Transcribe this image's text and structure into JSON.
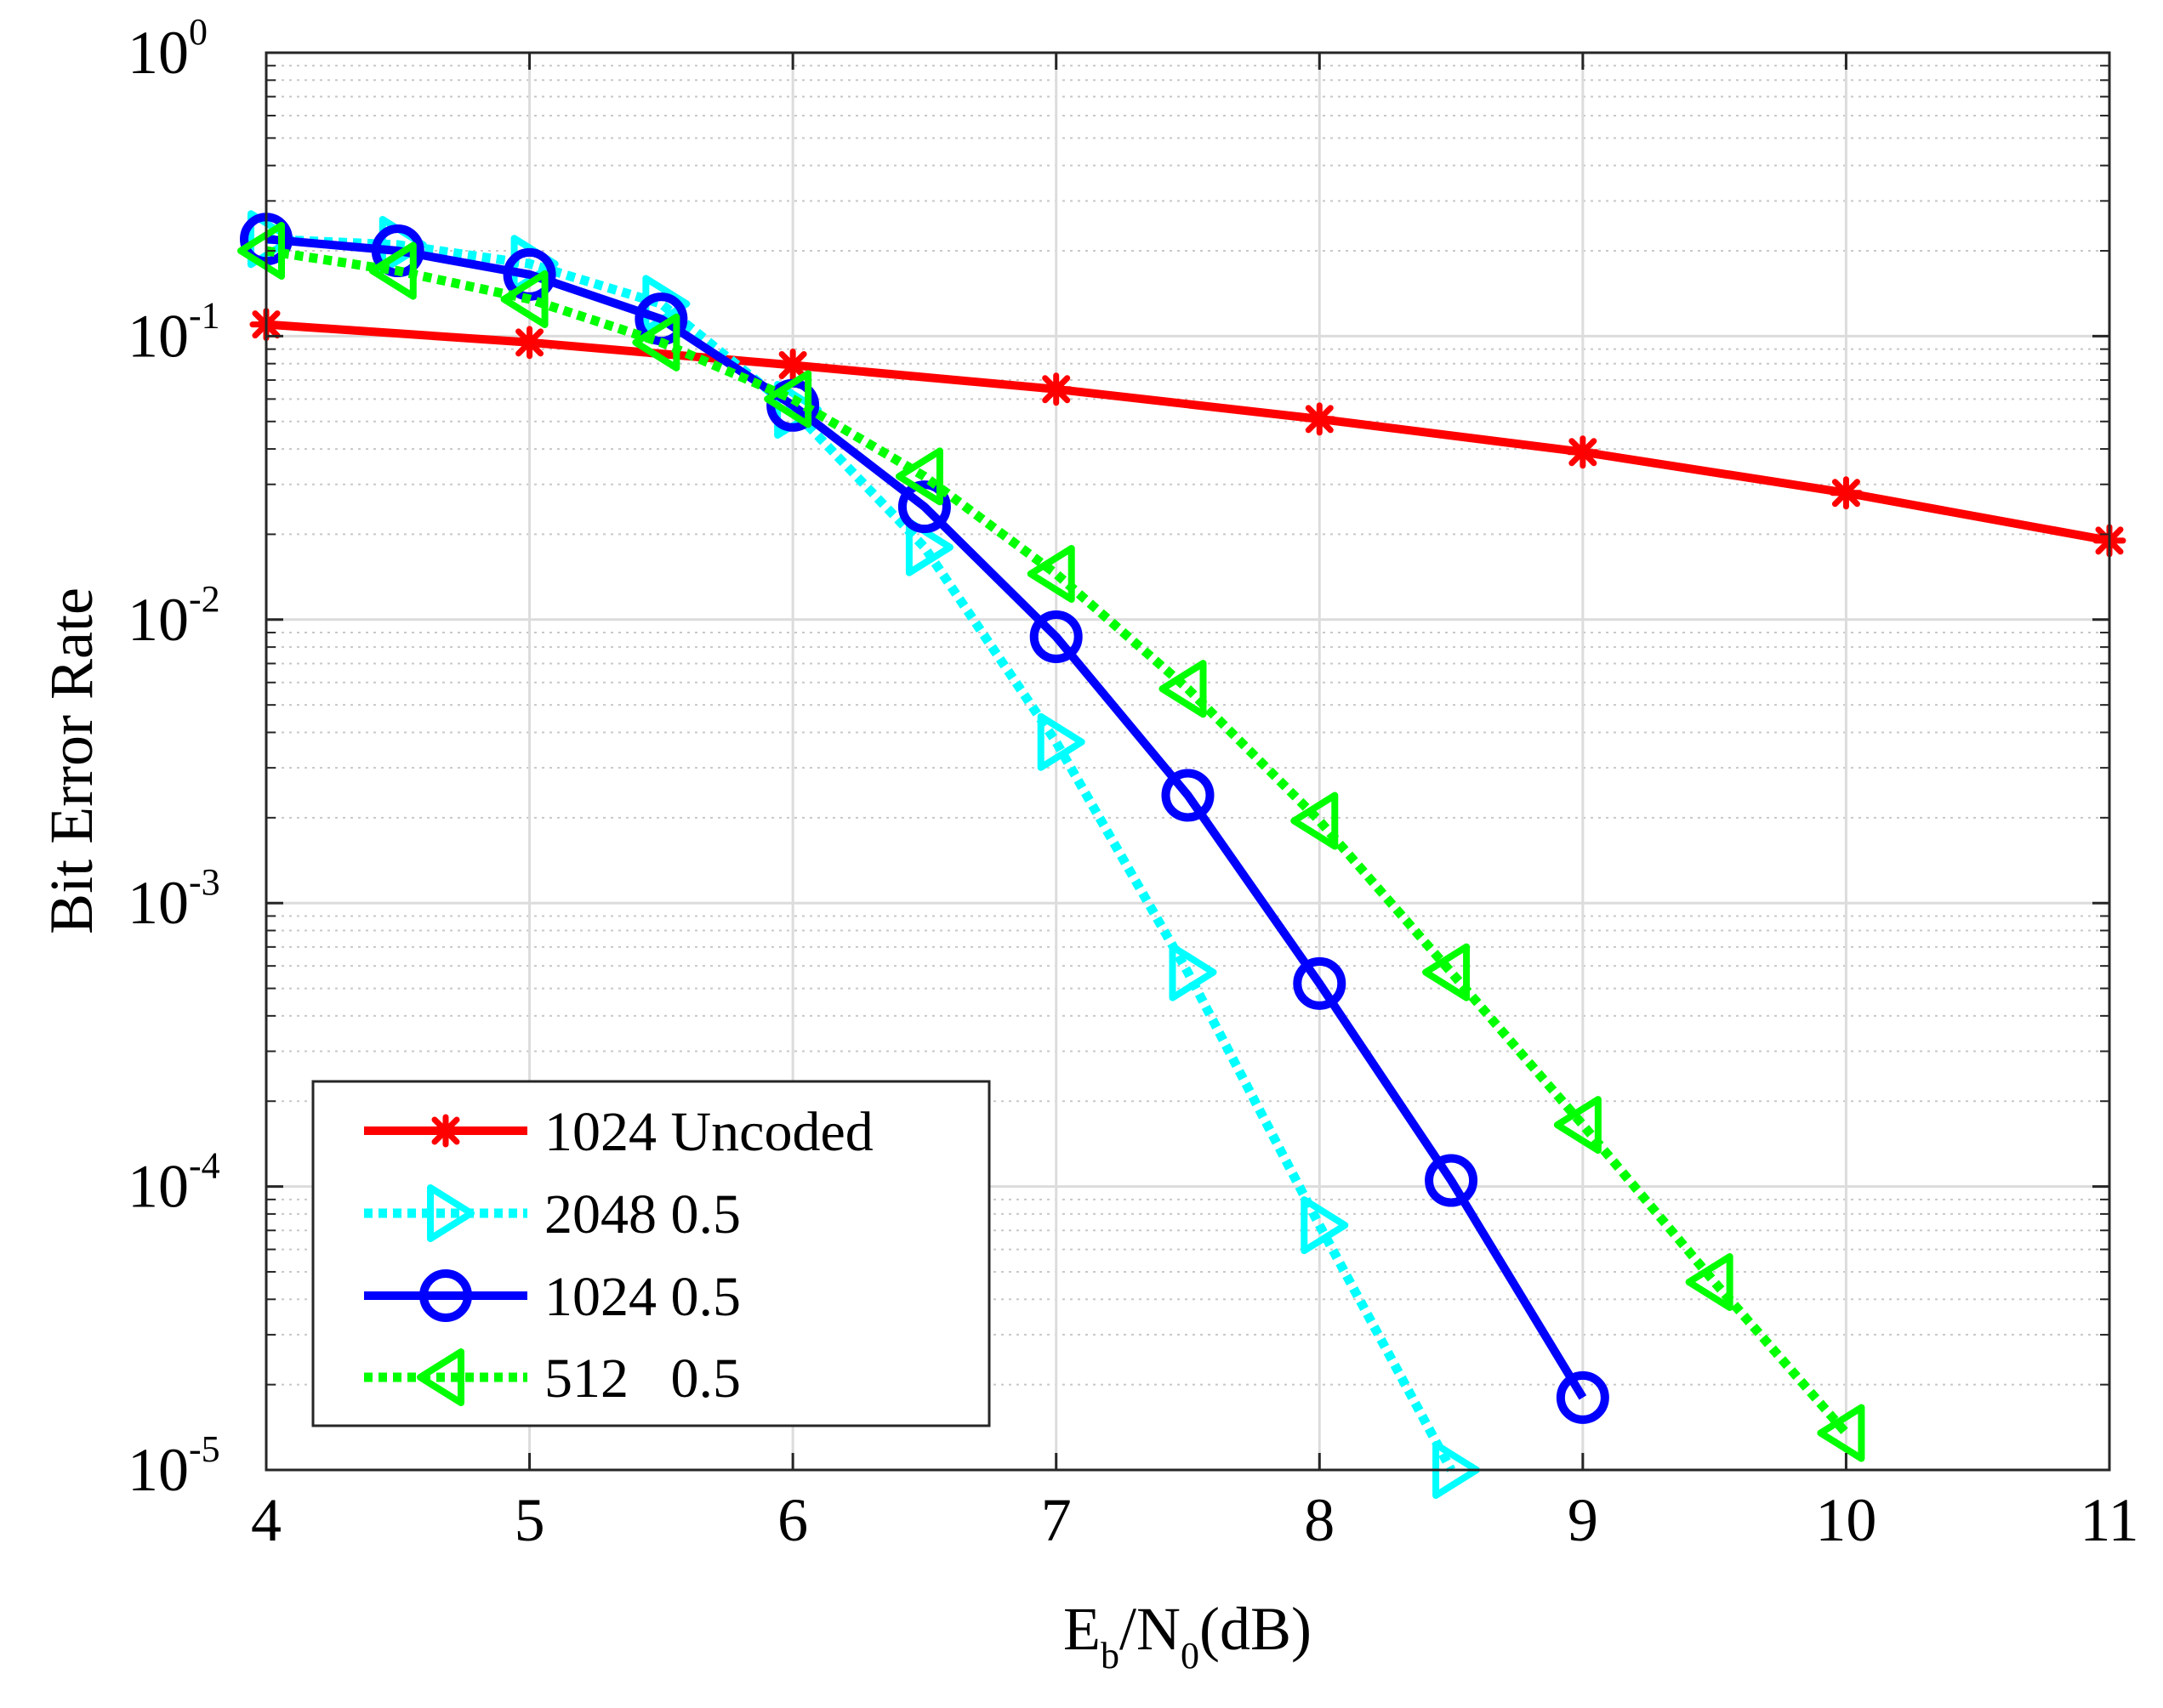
{
  "chart_data": {
    "type": "line",
    "title": "",
    "xlabel": {
      "base": "E",
      "sub1": "b",
      "mid": "/N",
      "sub2": "0",
      "tail": "(dB)"
    },
    "ylabel": "Bit Error Rate",
    "xlim": [
      4,
      11
    ],
    "ylim": [
      1e-05,
      1
    ],
    "yscale": "log",
    "grid": true,
    "legend_location": "lower-left",
    "x_ticks": [
      "4",
      "5",
      "6",
      "7",
      "8",
      "9",
      "10",
      "11"
    ],
    "y_ticks": [
      {
        "base": "10",
        "exp": "0"
      },
      {
        "base": "10",
        "exp": "-1"
      },
      {
        "base": "10",
        "exp": "-2"
      },
      {
        "base": "10",
        "exp": "-3"
      },
      {
        "base": "10",
        "exp": "-4"
      },
      {
        "base": "10",
        "exp": "-5"
      }
    ],
    "series": [
      {
        "name": "1024 Uncoded",
        "color": "#ff0000",
        "line_style": "solid",
        "marker": "star",
        "x": [
          4,
          5,
          6,
          7,
          8,
          9,
          10,
          11
        ],
        "y": [
          0.11,
          0.095,
          0.079,
          0.065,
          0.051,
          0.039,
          0.028,
          0.019
        ]
      },
      {
        "name": "2048 0.5",
        "color": "#00ffff",
        "line_style": "dotted",
        "marker": "triangle-right",
        "x": [
          4,
          4.5,
          5,
          5.5,
          6,
          6.5,
          7,
          7.5,
          8,
          8.5
        ],
        "y": [
          0.22,
          0.21,
          0.18,
          0.13,
          0.055,
          0.018,
          0.0037,
          0.00057,
          7.3e-05,
          1e-05
        ]
      },
      {
        "name": "1024 0.5",
        "color": "#0000ff",
        "line_style": "solid",
        "marker": "circle",
        "x": [
          4,
          4.5,
          5,
          5.5,
          6,
          6.5,
          7,
          7.5,
          8,
          8.5,
          9
        ],
        "y": [
          0.22,
          0.2,
          0.165,
          0.115,
          0.057,
          0.025,
          0.0087,
          0.0024,
          0.00052,
          0.000105,
          1.8e-05
        ]
      },
      {
        "name": "512   0.5",
        "color": "#00ff00",
        "line_style": "dotted",
        "marker": "triangle-left",
        "x": [
          4,
          4.5,
          5,
          5.5,
          6,
          6.5,
          7,
          7.5,
          8,
          8.5,
          9,
          9.5,
          10
        ],
        "y": [
          0.2,
          0.17,
          0.135,
          0.095,
          0.06,
          0.032,
          0.0145,
          0.0057,
          0.00195,
          0.00057,
          0.000165,
          4.6e-05,
          1.35e-05
        ]
      }
    ]
  }
}
